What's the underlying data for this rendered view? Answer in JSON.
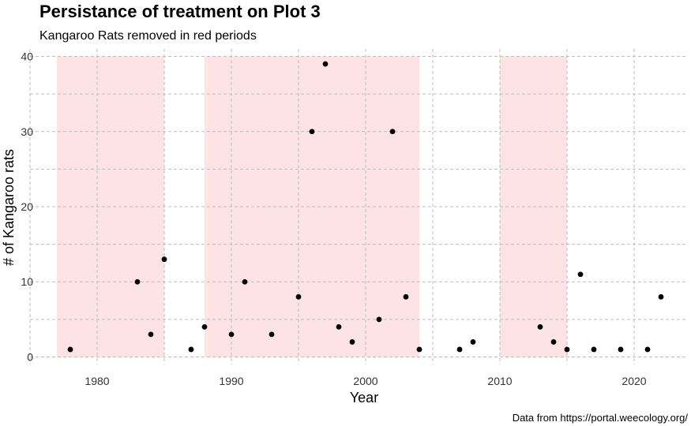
{
  "chart_data": {
    "type": "scatter",
    "title": "Persistance of treatment on Plot 3",
    "subtitle": "Kangaroo Rats removed in red periods",
    "xlabel": "Year",
    "ylabel": "# of Kangaroo rats",
    "caption": "Data from https://portal.weecology.org/",
    "xlim": [
      1975,
      2024
    ],
    "ylim": [
      -1,
      41
    ],
    "x_ticks": [
      1980,
      1990,
      2000,
      2010,
      2020
    ],
    "y_ticks": [
      0,
      10,
      20,
      30,
      40
    ],
    "grid": true,
    "grid_style": "dashed",
    "legend": "none",
    "removal_periods": [
      {
        "start": 1977,
        "end": 1985
      },
      {
        "start": 1988,
        "end": 2004
      },
      {
        "start": 2010,
        "end": 2015
      }
    ],
    "points": [
      {
        "x": 1978,
        "y": 1
      },
      {
        "x": 1983,
        "y": 10
      },
      {
        "x": 1984,
        "y": 3
      },
      {
        "x": 1985,
        "y": 13
      },
      {
        "x": 1987,
        "y": 1
      },
      {
        "x": 1988,
        "y": 4
      },
      {
        "x": 1990,
        "y": 3
      },
      {
        "x": 1991,
        "y": 10
      },
      {
        "x": 1993,
        "y": 3
      },
      {
        "x": 1995,
        "y": 8
      },
      {
        "x": 1996,
        "y": 30
      },
      {
        "x": 1997,
        "y": 39
      },
      {
        "x": 1998,
        "y": 4
      },
      {
        "x": 1999,
        "y": 2
      },
      {
        "x": 2001,
        "y": 5
      },
      {
        "x": 2002,
        "y": 30
      },
      {
        "x": 2003,
        "y": 8
      },
      {
        "x": 2004,
        "y": 1
      },
      {
        "x": 2007,
        "y": 1
      },
      {
        "x": 2008,
        "y": 2
      },
      {
        "x": 2013,
        "y": 4
      },
      {
        "x": 2014,
        "y": 2
      },
      {
        "x": 2015,
        "y": 1
      },
      {
        "x": 2016,
        "y": 11
      },
      {
        "x": 2017,
        "y": 1
      },
      {
        "x": 2019,
        "y": 1
      },
      {
        "x": 2021,
        "y": 1
      },
      {
        "x": 2022,
        "y": 8
      }
    ],
    "colors": {
      "period_fill": "#fde3e5",
      "point": "#000000",
      "grid": "#bdbdbd"
    }
  }
}
